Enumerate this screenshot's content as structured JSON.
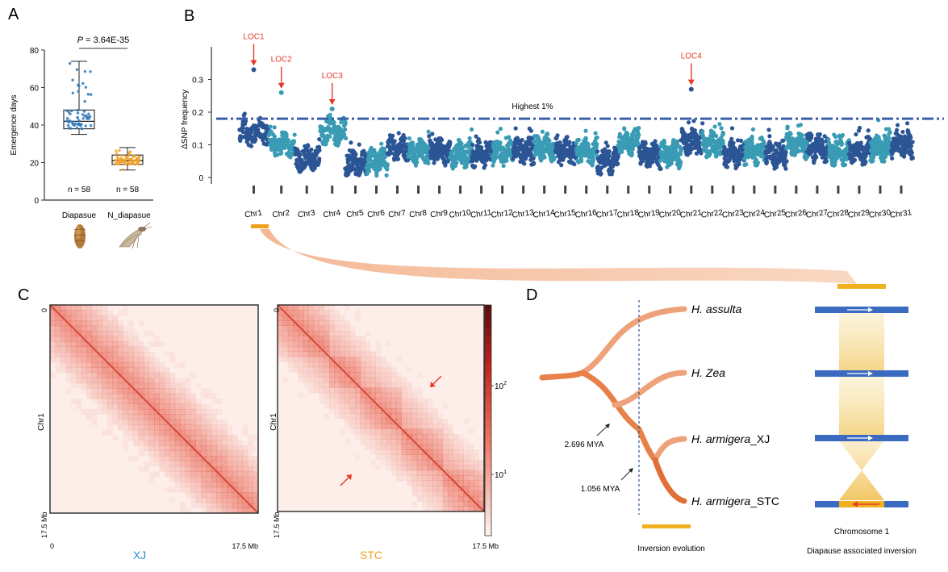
{
  "panels": {
    "a": "A",
    "b": "B",
    "c": "C",
    "d": "D"
  },
  "colors": {
    "dark_blue": "#2b5594",
    "teal": "#3a9bb5",
    "red": "#e53a2a",
    "orange": "#f0a020",
    "threshold": "#3b5fa8",
    "branch": "#e8804a",
    "chrom": "#3a6bc0"
  },
  "chart_data": [
    {
      "type": "box",
      "panel": "A",
      "pvalue_label": "P",
      "pvalue_text": "= 3.64E-35",
      "ylabel": "Emergence days",
      "ylim": [
        0,
        80
      ],
      "yticks": [
        "0",
        "20",
        "40",
        "60",
        "80"
      ],
      "categories": [
        "Diapasue",
        "N_diapasue"
      ],
      "n_labels": [
        "n = 58",
        "n = 58"
      ],
      "boxes": [
        {
          "min": 35,
          "q1": 38,
          "median": 42,
          "q3": 48,
          "max": 74,
          "color": "#2b78b8"
        },
        {
          "min": 16,
          "q1": 19,
          "median": 21,
          "q3": 24,
          "max": 28,
          "color": "#f0a020"
        }
      ]
    },
    {
      "type": "scatter",
      "panel": "B",
      "ylabel": "ΔSNP frequency",
      "ylim": [
        0,
        0.4
      ],
      "yticks": [
        "0",
        "0.1",
        "0.2",
        "0.3"
      ],
      "threshold": {
        "value": 0.18,
        "label": "Highest 1%"
      },
      "chromosomes": [
        "Chr1",
        "Chr2",
        "Chr3",
        "Chr4",
        "Chr5",
        "Chr6",
        "Chr7",
        "Chr8",
        "Chr9",
        "Chr10",
        "Chr11",
        "Chr12",
        "Chr13",
        "Chr14",
        "Chr15",
        "Chr16",
        "Chr17",
        "Chr18",
        "Chr19",
        "Chr20",
        "Chr21",
        "Chr22",
        "Chr23",
        "Chr24",
        "Chr25",
        "Chr26",
        "Chr27",
        "Chr28",
        "Chr29",
        "Chr30",
        "Chr31"
      ],
      "chrom_levels": [
        0.14,
        0.1,
        0.06,
        0.14,
        0.04,
        0.05,
        0.09,
        0.08,
        0.08,
        0.07,
        0.07,
        0.08,
        0.08,
        0.09,
        0.08,
        0.08,
        0.05,
        0.11,
        0.07,
        0.07,
        0.11,
        0.1,
        0.07,
        0.08,
        0.07,
        0.1,
        0.09,
        0.08,
        0.08,
        0.09,
        0.1
      ],
      "loci": [
        {
          "label": "LOC1",
          "chr": "Chr1",
          "value": 0.33
        },
        {
          "label": "LOC2",
          "chr": "Chr2",
          "value": 0.26
        },
        {
          "label": "LOC3",
          "chr": "Chr4",
          "value": 0.21
        },
        {
          "label": "LOC4",
          "chr": "Chr21",
          "value": 0.27
        }
      ]
    },
    {
      "type": "heatmap",
      "panel": "C",
      "maps": [
        {
          "sample": "XJ",
          "ylabel": "Chr1",
          "y_start": "0",
          "y_end": "17.5 Mb",
          "x_start": "0",
          "x_end": "17.5 Mb",
          "title_color": "#2b8fcf"
        },
        {
          "sample": "STC",
          "ylabel": "Chr1",
          "y_start": "0",
          "y_end": "17.5 Mb",
          "x_end": "17.5 Mb",
          "title_color": "#f0a020"
        }
      ],
      "colorbar_ticks": [
        {
          "base": "10",
          "exp": "2",
          "value": 100
        },
        {
          "base": "10",
          "exp": "1",
          "value": 10
        }
      ]
    }
  ],
  "panel_d": {
    "species": [
      {
        "genus": "H.",
        "epithet": "assulta",
        "suffix": ""
      },
      {
        "genus": "H.",
        "epithet": "Zea",
        "suffix": ""
      },
      {
        "genus": "H.",
        "epithet": "armigera",
        "suffix": "_XJ"
      },
      {
        "genus": "H.",
        "epithet": "armigera",
        "suffix": "_STC"
      }
    ],
    "node_labels": [
      "2.696 MYA",
      "1.056 MYA"
    ],
    "caption_left": "Inversion evolution",
    "caption_right_1": "Chromosome 1",
    "caption_right_2": "Diapause associated inversion"
  }
}
